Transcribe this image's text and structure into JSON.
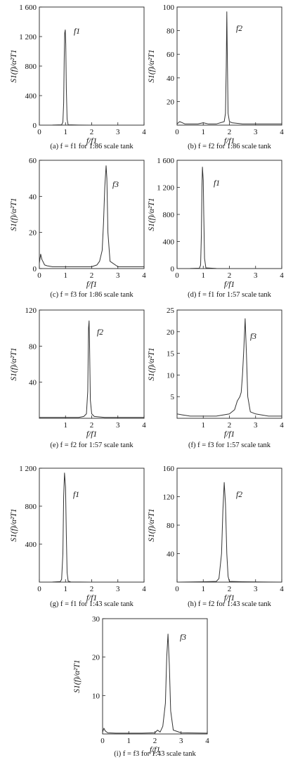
{
  "chart_data": [
    {
      "type": "line",
      "caption": "(a) f = f1 for 1:86 scale tank",
      "ylabel": "S1(f)/α²T1",
      "xlabel": "f/f1",
      "peak_label": "f1",
      "xlim": [
        0,
        4
      ],
      "ylim": [
        0,
        1600
      ],
      "xticks": [
        0,
        1,
        2,
        3,
        4
      ],
      "xtick_labels": [
        "0",
        "1",
        "2",
        "3",
        "4"
      ],
      "yticks": [
        0,
        400,
        800,
        1200,
        1600
      ],
      "ytick_labels": [
        "0",
        "400",
        "800",
        "1 200",
        "1 600"
      ],
      "x": [
        0,
        0.5,
        0.85,
        0.9,
        0.93,
        0.95,
        0.97,
        0.99,
        1.01,
        1.03,
        1.06,
        1.1,
        1.5,
        2,
        3,
        4
      ],
      "y": [
        0,
        1,
        5,
        40,
        300,
        900,
        1250,
        1290,
        1100,
        500,
        80,
        5,
        1,
        0,
        0,
        0
      ]
    },
    {
      "type": "line",
      "caption": "(b) f = f2 for 1:86 scale tank",
      "ylabel": "S1(f)/α²T1",
      "xlabel": "f/f1",
      "peak_label": "f2",
      "xlim": [
        0,
        4
      ],
      "ylim": [
        0,
        100
      ],
      "xticks": [
        0,
        1,
        2,
        3,
        4
      ],
      "xtick_labels": [
        "0",
        "1",
        "2",
        "3",
        "4"
      ],
      "yticks": [
        20,
        40,
        60,
        80,
        100
      ],
      "ytick_labels": [
        "20",
        "40",
        "60",
        "80",
        "100"
      ],
      "x": [
        0,
        0.1,
        0.2,
        0.3,
        0.5,
        0.8,
        1.0,
        1.2,
        1.5,
        1.8,
        1.85,
        1.88,
        1.9,
        1.92,
        1.95,
        2.0,
        2.1,
        2.5,
        3.0,
        3.5,
        4.0
      ],
      "y": [
        1,
        3,
        2,
        1,
        1,
        1,
        2,
        1,
        1,
        3,
        10,
        50,
        96,
        60,
        10,
        3,
        2,
        1,
        1,
        1,
        1
      ]
    },
    {
      "type": "line",
      "caption": "(c) f = f3 for 1:86 scale tank",
      "ylabel": "S1(f)/α²T1",
      "xlabel": "f/f1",
      "peak_label": "f3",
      "xlim": [
        0,
        4
      ],
      "ylim": [
        0,
        60
      ],
      "xticks": [
        0,
        1,
        2,
        3,
        4
      ],
      "xtick_labels": [
        "0",
        "1",
        "2",
        "3",
        "4"
      ],
      "yticks": [
        0,
        20,
        40,
        60
      ],
      "ytick_labels": [
        "0",
        "20",
        "40",
        "60"
      ],
      "x": [
        0,
        0.05,
        0.1,
        0.2,
        0.3,
        0.5,
        1.0,
        1.5,
        2.0,
        2.2,
        2.3,
        2.4,
        2.45,
        2.5,
        2.55,
        2.58,
        2.62,
        2.7,
        3.0,
        3.5,
        4.0
      ],
      "y": [
        3,
        8,
        5,
        2,
        1.5,
        1,
        1,
        1,
        1,
        2,
        4,
        10,
        25,
        45,
        57,
        50,
        20,
        4,
        1,
        1,
        1
      ]
    },
    {
      "type": "line",
      "caption": "(d) f = f1 for 1:57 scale tank",
      "ylabel": "S1(f)/α²T1",
      "xlabel": "f/f1",
      "peak_label": "f1",
      "xlim": [
        0,
        4
      ],
      "ylim": [
        0,
        1600
      ],
      "xticks": [
        0,
        1,
        2,
        3,
        4
      ],
      "xtick_labels": [
        "0",
        "1",
        "2",
        "3",
        "4"
      ],
      "yticks": [
        0,
        400,
        800,
        1200,
        1600
      ],
      "ytick_labels": [
        "0",
        "400",
        "800",
        "1 200",
        "1 600"
      ],
      "x": [
        0,
        0.5,
        0.85,
        0.9,
        0.93,
        0.95,
        0.97,
        1.0,
        1.02,
        1.05,
        1.1,
        1.5,
        2,
        3,
        4
      ],
      "y": [
        0,
        1,
        5,
        50,
        500,
        1200,
        1500,
        1300,
        800,
        150,
        10,
        1,
        0,
        0,
        0
      ]
    },
    {
      "type": "line",
      "caption": "(e) f = f2 for 1:57 scale tank",
      "ylabel": "S1(f)/α²T1",
      "xlabel": "f/f1",
      "peak_label": "f2",
      "xlim": [
        0,
        4
      ],
      "ylim": [
        0,
        120
      ],
      "xticks": [
        1,
        2,
        3,
        4
      ],
      "xtick_labels": [
        "1",
        "2",
        "3",
        "4"
      ],
      "yticks": [
        40,
        80,
        120
      ],
      "ytick_labels": [
        "40",
        "80",
        "120"
      ],
      "x": [
        0,
        0.5,
        1.0,
        1.5,
        1.7,
        1.8,
        1.85,
        1.88,
        1.9,
        1.92,
        1.95,
        2.0,
        2.1,
        2.5,
        3.0,
        4.0
      ],
      "y": [
        1,
        1,
        1,
        1,
        2,
        5,
        30,
        100,
        108,
        80,
        20,
        5,
        2,
        1,
        1,
        1
      ]
    },
    {
      "type": "line",
      "caption": "(f) f = f3 for 1:57 scale tank",
      "ylabel": "S1(f)/α²T1",
      "xlabel": "f/f1",
      "peak_label": "f3",
      "xlim": [
        0,
        4
      ],
      "ylim": [
        0,
        25
      ],
      "xticks": [
        1,
        2,
        3,
        4
      ],
      "xtick_labels": [
        "1",
        "2",
        "3",
        "4"
      ],
      "yticks": [
        5,
        10,
        15,
        20,
        25
      ],
      "ytick_labels": [
        "5",
        "10",
        "15",
        "20",
        "25"
      ],
      "x": [
        0,
        0.2,
        0.5,
        1.0,
        1.5,
        2.0,
        2.2,
        2.3,
        2.4,
        2.45,
        2.5,
        2.55,
        2.6,
        2.65,
        2.7,
        2.8,
        3.0,
        3.5,
        4.0
      ],
      "y": [
        1,
        0.8,
        0.5,
        0.5,
        0.5,
        1,
        2,
        4,
        5,
        6,
        10,
        16,
        23,
        15,
        5,
        1.5,
        1,
        0.5,
        0.5
      ]
    },
    {
      "type": "line",
      "caption": "(g) f = f1 for 1:43 scale tank",
      "ylabel": "S1(f)/α²T1",
      "xlabel": "f/f1",
      "peak_label": "f1",
      "xlim": [
        0,
        4
      ],
      "ylim": [
        0,
        1200
      ],
      "xticks": [
        0,
        1,
        2,
        3,
        4
      ],
      "xtick_labels": [
        "0",
        "1",
        "2",
        "3",
        "4"
      ],
      "yticks": [
        400,
        800,
        1200
      ],
      "ytick_labels": [
        "400",
        "800",
        "1 200"
      ],
      "x": [
        0,
        0.5,
        0.8,
        0.85,
        0.9,
        0.93,
        0.96,
        1.0,
        1.03,
        1.06,
        1.1,
        1.2,
        2,
        4
      ],
      "y": [
        0,
        1,
        5,
        30,
        300,
        900,
        1150,
        1000,
        500,
        100,
        10,
        2,
        0,
        0
      ]
    },
    {
      "type": "line",
      "caption": "(h) f = f2 for 1:43 scale tank",
      "ylabel": "S1(f)/α²T1",
      "xlabel": "f/f1",
      "peak_label": "f2",
      "xlim": [
        0,
        4
      ],
      "ylim": [
        0,
        160
      ],
      "xticks": [
        0,
        1,
        2,
        3,
        4
      ],
      "xtick_labels": [
        "0",
        "1",
        "2",
        "3",
        "4"
      ],
      "yticks": [
        40,
        80,
        120,
        160
      ],
      "ytick_labels": [
        "40",
        "80",
        "120",
        "160"
      ],
      "x": [
        0,
        1.0,
        1.5,
        1.6,
        1.7,
        1.75,
        1.8,
        1.85,
        1.9,
        1.95,
        2.0,
        2.5,
        4
      ],
      "y": [
        0,
        0.5,
        1,
        5,
        40,
        100,
        140,
        110,
        40,
        8,
        1,
        0.5,
        0
      ]
    },
    {
      "type": "line",
      "caption": "(i) f = f3 for 1:43 scale tank",
      "ylabel": "S1(f)/α²T1",
      "xlabel": "f/f1",
      "peak_label": "f3",
      "xlim": [
        0,
        4
      ],
      "ylim": [
        0,
        30
      ],
      "xticks": [
        0,
        1,
        2,
        3,
        4
      ],
      "xtick_labels": [
        "0",
        "1",
        "2",
        "3",
        "4"
      ],
      "yticks": [
        10,
        20,
        30
      ],
      "ytick_labels": [
        "10",
        "20",
        "30"
      ],
      "x": [
        0,
        0.05,
        0.1,
        0.2,
        0.5,
        1.0,
        1.5,
        2.0,
        2.1,
        2.2,
        2.3,
        2.4,
        2.45,
        2.5,
        2.55,
        2.6,
        2.7,
        3.0,
        4.0
      ],
      "y": [
        0.5,
        1.5,
        0.8,
        0.3,
        0.2,
        0.2,
        0.2,
        0.3,
        1,
        0.5,
        2,
        8,
        20,
        26,
        18,
        6,
        1,
        0.3,
        0.2
      ]
    }
  ]
}
